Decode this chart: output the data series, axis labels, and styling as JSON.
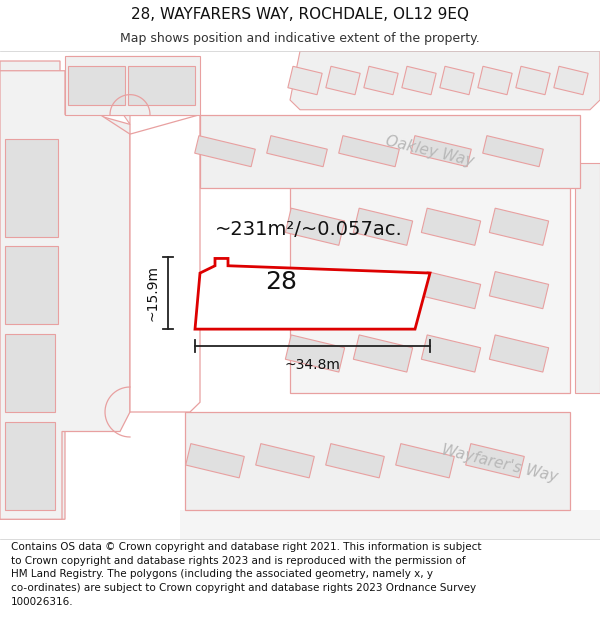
{
  "title_line1": "28, WAYFARERS WAY, ROCHDALE, OL12 9EQ",
  "title_line2": "Map shows position and indicative extent of the property.",
  "footer_text": "Contains OS data © Crown copyright and database right 2021. This information is subject\nto Crown copyright and database rights 2023 and is reproduced with the permission of\nHM Land Registry. The polygons (including the associated geometry, namely x, y\nco-ordinates) are subject to Crown copyright and database rights 2023 Ordnance Survey\n100026316.",
  "area_label": "~231m²/~0.057ac.",
  "number_label": "28",
  "width_label": "~34.8m",
  "height_label": "~15.9m",
  "oakley_way_label": "Oakley Way",
  "wayfarers_label": "Wayfarer's Way",
  "map_bg": "#ffffff",
  "parcel_fill": "#ffffff",
  "parcel_stroke": "#dd0000",
  "road_parcel_fill": "#eeeeee",
  "bldg_fill": "#d8d8d8",
  "bldg_stroke": "#c0b0b0",
  "road_outline_color": "#e8a0a0",
  "road_label_color": "#b0b0b0",
  "title_fontsize": 11,
  "subtitle_fontsize": 9,
  "footer_fontsize": 7.5,
  "area_fontsize": 14,
  "number_fontsize": 18,
  "dim_fontsize": 10,
  "street_fontsize": 11
}
